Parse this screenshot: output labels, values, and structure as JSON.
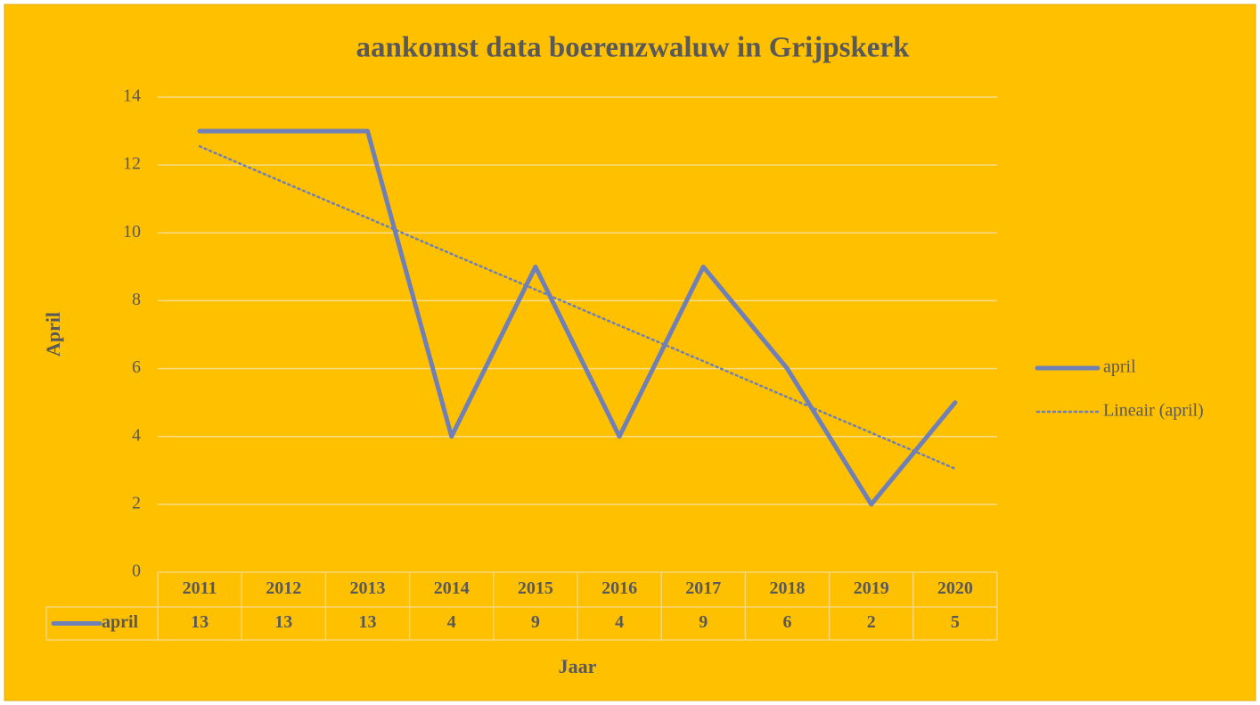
{
  "chart_data": {
    "type": "line",
    "title": "aankomst data boerenzwaluw in Grijpskerk",
    "x_label": "Jaar",
    "y_label": "April",
    "categories": [
      "2011",
      "2012",
      "2013",
      "2014",
      "2015",
      "2016",
      "2017",
      "2018",
      "2019",
      "2020"
    ],
    "series": [
      {
        "name": "april",
        "color": "#6f80b8",
        "style": "solid",
        "values": [
          13,
          13,
          13,
          4,
          9,
          4,
          9,
          6,
          2,
          5
        ]
      },
      {
        "name": "Lineair (april)",
        "color": "#6f80b8",
        "style": "dotted",
        "values": [
          12.55,
          11.49,
          10.44,
          9.38,
          8.33,
          7.27,
          6.22,
          5.16,
          4.11,
          3.05
        ]
      }
    ],
    "ylim": [
      0,
      14
    ],
    "yticks": [
      0,
      2,
      4,
      6,
      8,
      10,
      12,
      14
    ],
    "grid": true,
    "legend": "right",
    "data_table": true
  }
}
